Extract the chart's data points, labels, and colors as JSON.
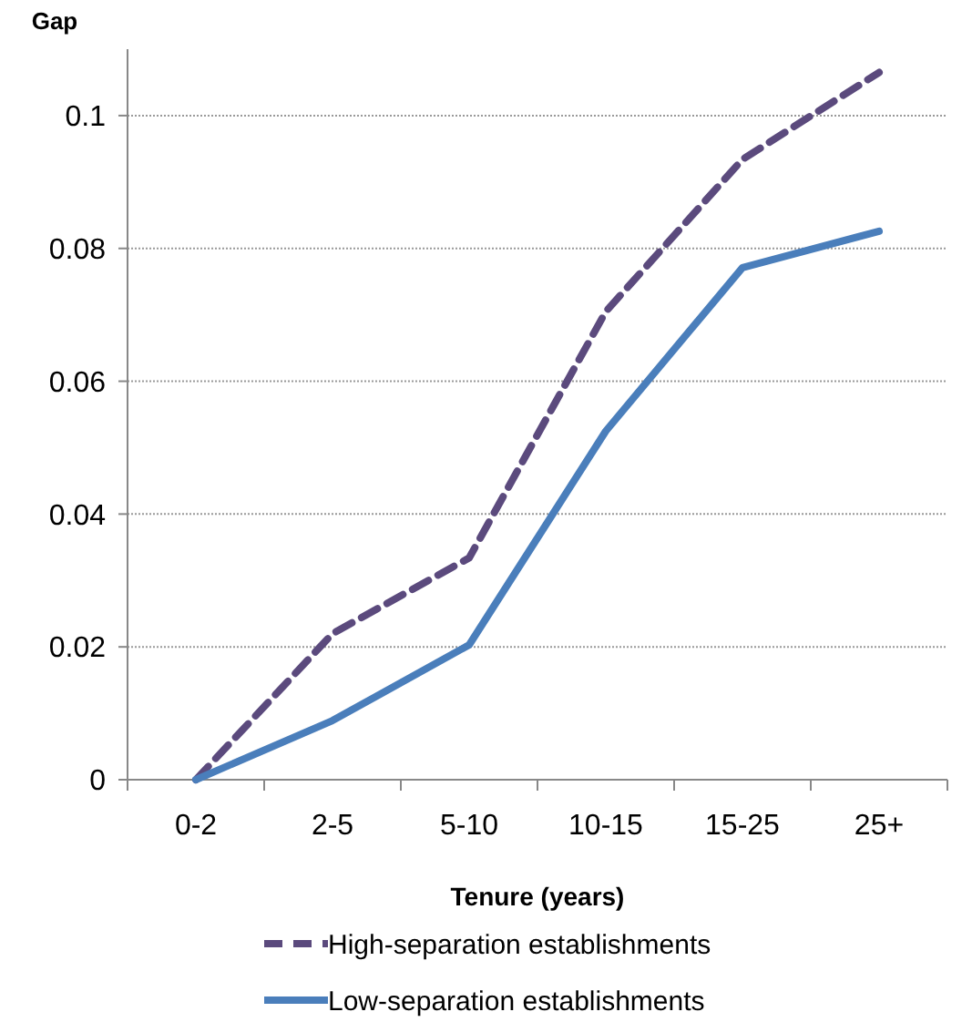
{
  "chart_data": {
    "type": "line",
    "ylabel": "Gap",
    "xlabel": "Tenure (years)",
    "categories": [
      "0-2",
      "2-5",
      "5-10",
      "10-15",
      "15-25",
      "25+"
    ],
    "series": [
      {
        "name": "High-separation establishments",
        "color": "#5b4a7d",
        "line_style": "dashed",
        "values": [
          0,
          0.022,
          0.0334,
          0.0705,
          0.0934,
          0.1065
        ]
      },
      {
        "name": "Low-separation establishments",
        "color": "#4a7ebb",
        "line_style": "solid",
        "values": [
          0,
          0.0089,
          0.0203,
          0.0525,
          0.0771,
          0.0826
        ]
      }
    ],
    "ylim": [
      0,
      0.11
    ],
    "yticks": [
      0,
      0.02,
      0.04,
      0.06,
      0.08,
      0.1
    ],
    "grid": "y",
    "legend": "bottom",
    "marker": "none"
  }
}
